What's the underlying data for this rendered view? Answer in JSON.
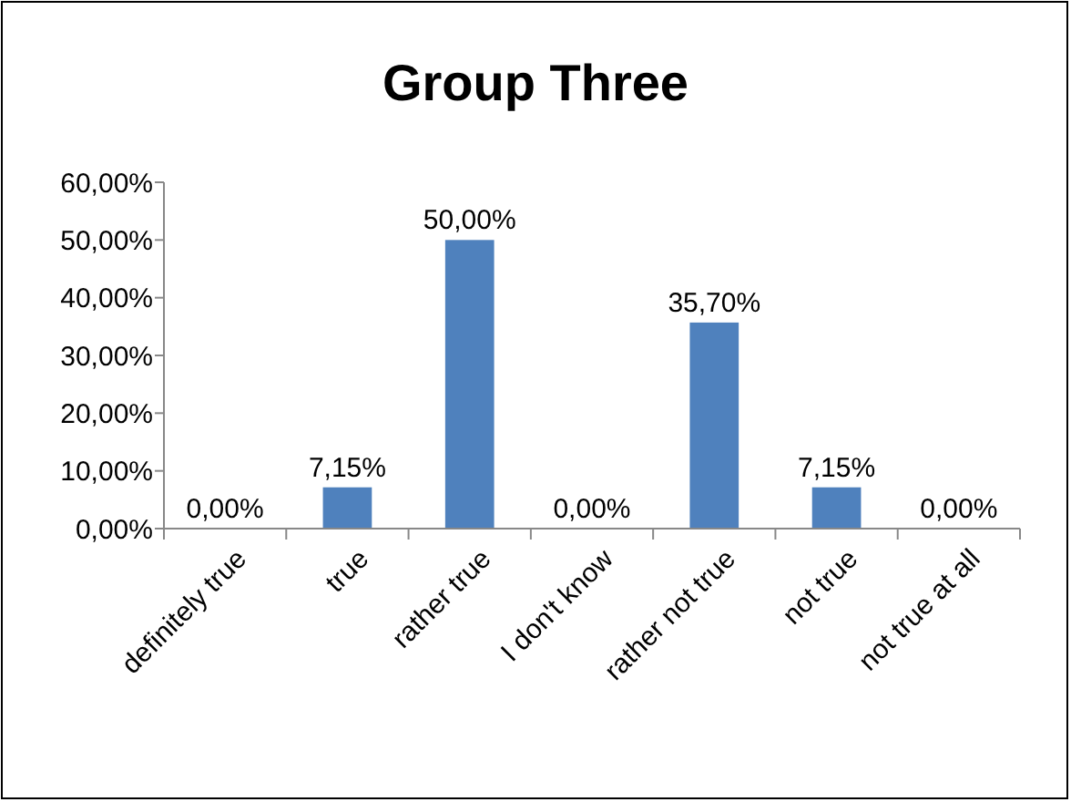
{
  "chart_data": {
    "type": "bar",
    "title": "Group Three",
    "categories": [
      "definitely true",
      "true",
      "rather true",
      "I don't know",
      "rather not true",
      "not true",
      "not true at all"
    ],
    "values": [
      0,
      7.15,
      50,
      0,
      35.7,
      7.15,
      0
    ],
    "value_labels": [
      "0,00%",
      "7,15%",
      "50,00%",
      "0,00%",
      "35,70%",
      "7,15%",
      "0,00%"
    ],
    "color": "#4f81bd",
    "ylim": [
      0,
      60
    ],
    "yticks": [
      {
        "value": 0,
        "label": "0,00%"
      },
      {
        "value": 10,
        "label": "10,00%"
      },
      {
        "value": 20,
        "label": "20,00%"
      },
      {
        "value": 30,
        "label": "30,00%"
      },
      {
        "value": 40,
        "label": "40,00%"
      },
      {
        "value": 50,
        "label": "50,00%"
      },
      {
        "value": 60,
        "label": "60,00%"
      }
    ],
    "grid": false
  }
}
